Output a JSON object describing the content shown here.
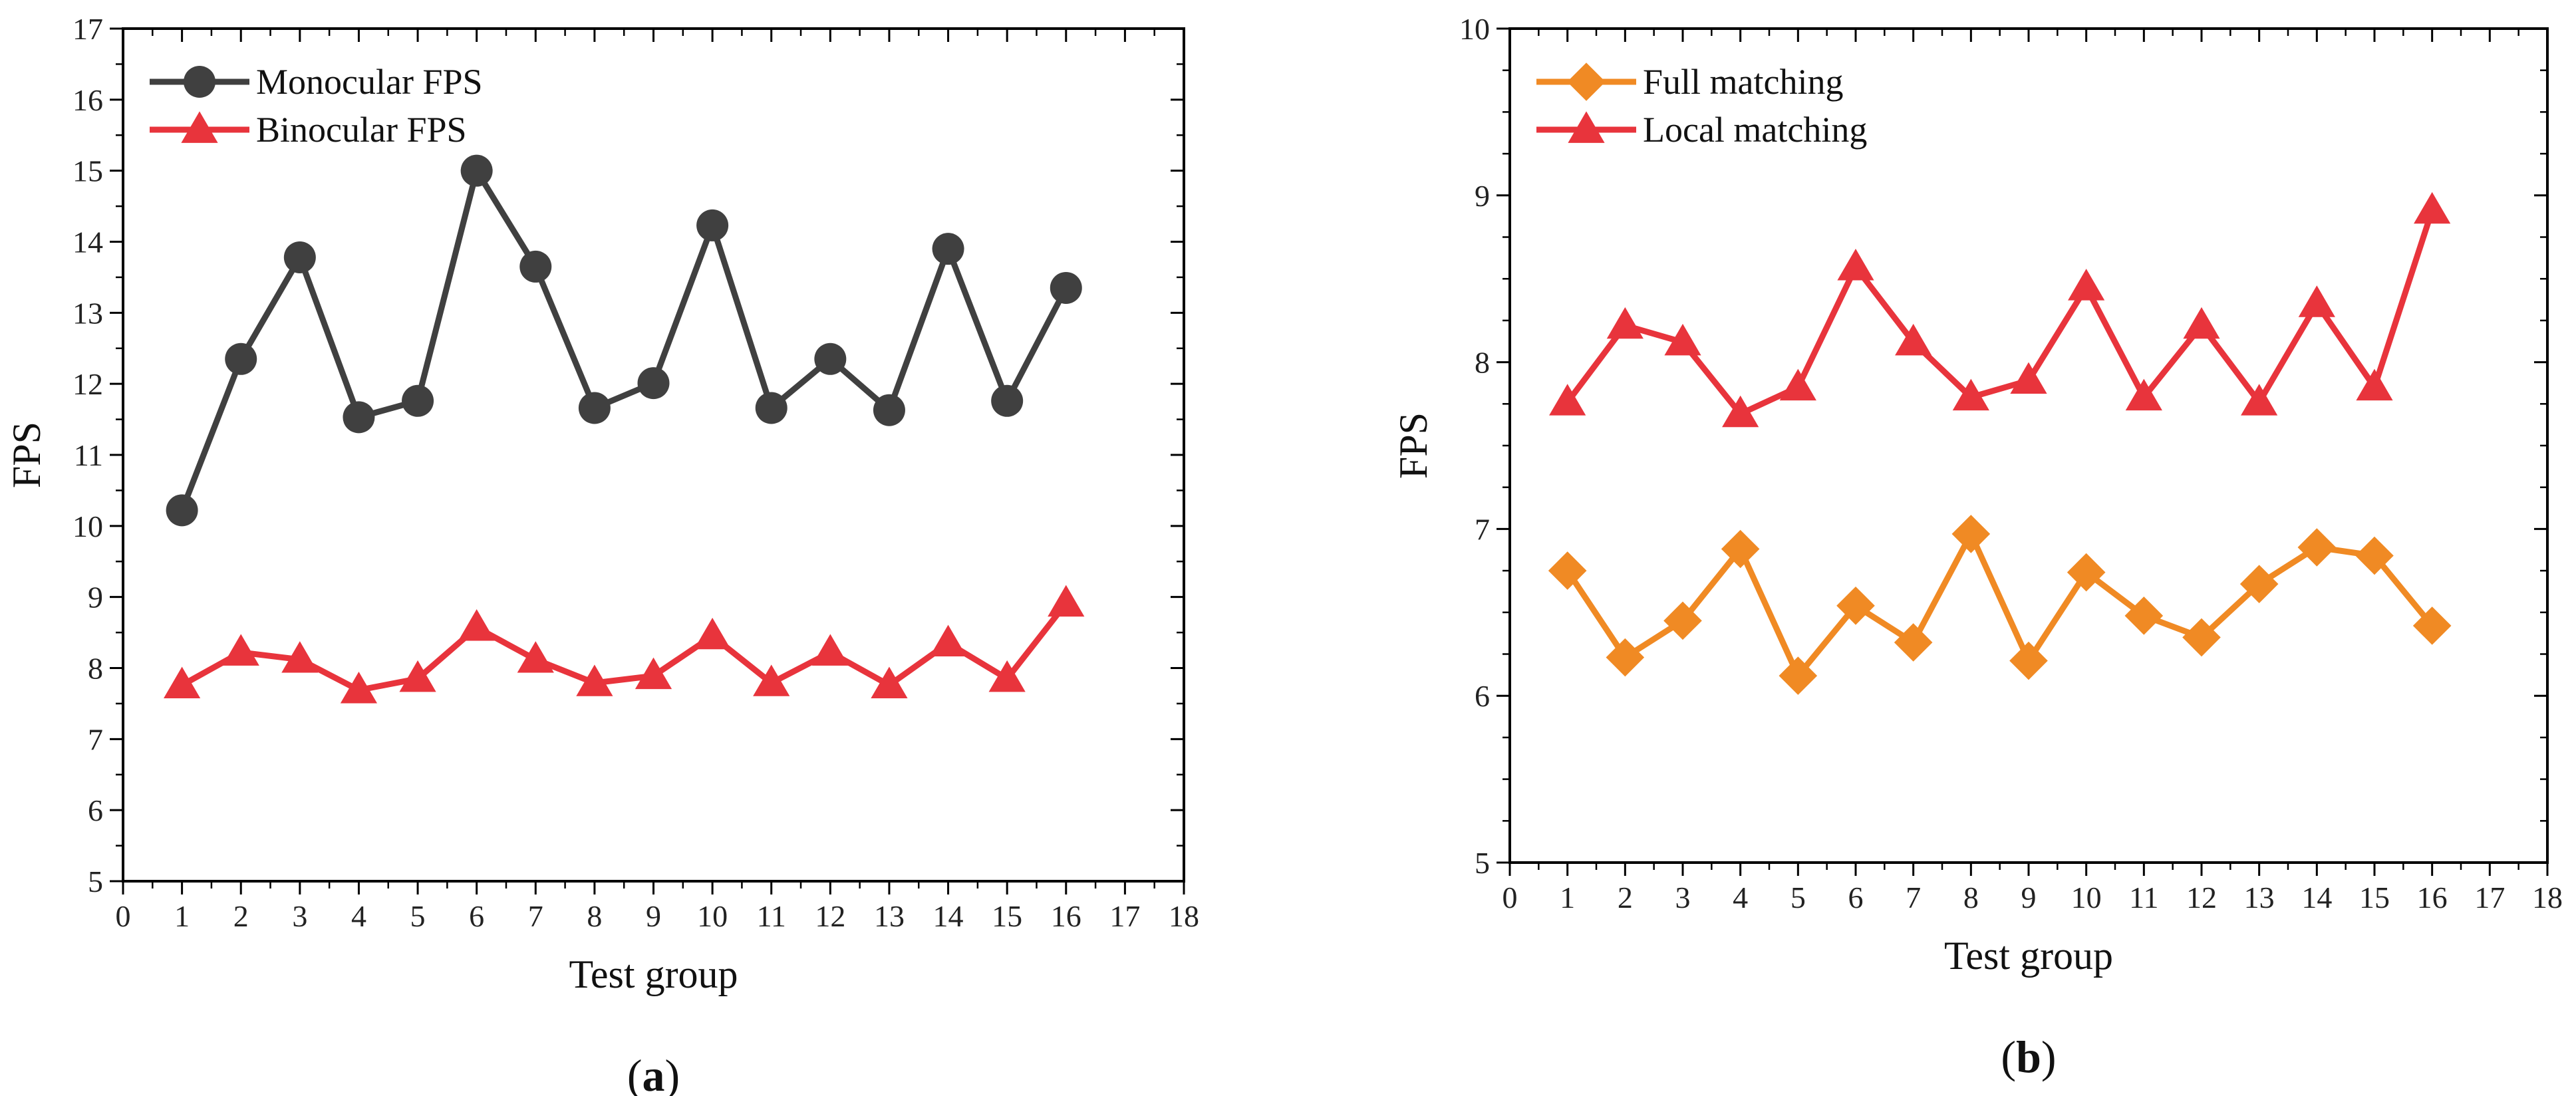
{
  "chart_data": [
    {
      "type": "line",
      "panel_label": "a",
      "xlabel": "Test group",
      "ylabel": "FPS",
      "xlim": [
        0,
        18
      ],
      "ylim": [
        5,
        17
      ],
      "x_ticks": [
        0,
        1,
        2,
        3,
        4,
        5,
        6,
        7,
        8,
        9,
        10,
        11,
        12,
        13,
        14,
        15,
        16,
        17,
        18
      ],
      "y_ticks": [
        5,
        6,
        7,
        8,
        9,
        10,
        11,
        12,
        13,
        14,
        15,
        16,
        17
      ],
      "legend_position": "top-left",
      "x": [
        1,
        2,
        3,
        4,
        5,
        6,
        7,
        8,
        9,
        10,
        11,
        12,
        13,
        14,
        15,
        16
      ],
      "series": [
        {
          "name": "Monocular FPS",
          "marker": "circle",
          "color": "#404040",
          "values": [
            10.22,
            12.35,
            13.78,
            11.53,
            11.76,
            15.0,
            13.65,
            11.66,
            12.01,
            14.23,
            11.66,
            12.35,
            11.63,
            13.9,
            11.76,
            13.35
          ]
        },
        {
          "name": "Binocular FPS",
          "marker": "triangle",
          "color": "#e8343c",
          "values": [
            7.76,
            8.22,
            8.12,
            7.69,
            7.85,
            8.57,
            8.12,
            7.79,
            7.89,
            8.45,
            7.79,
            8.22,
            7.76,
            8.35,
            7.85,
            8.91
          ]
        }
      ]
    },
    {
      "type": "line",
      "panel_label": "b",
      "xlabel": "Test group",
      "ylabel": "FPS",
      "xlim": [
        0,
        18
      ],
      "ylim": [
        5,
        10
      ],
      "x_ticks": [
        0,
        1,
        2,
        3,
        4,
        5,
        6,
        7,
        8,
        9,
        10,
        11,
        12,
        13,
        14,
        15,
        16,
        17,
        18
      ],
      "y_ticks": [
        5,
        6,
        7,
        8,
        9,
        10
      ],
      "legend_position": "top-left",
      "x": [
        1,
        2,
        3,
        4,
        5,
        6,
        7,
        8,
        9,
        10,
        11,
        12,
        13,
        14,
        15,
        16
      ],
      "series": [
        {
          "name": "Full matching",
          "marker": "diamond",
          "color": "#f08a24",
          "values": [
            6.75,
            6.23,
            6.45,
            6.88,
            6.12,
            6.54,
            6.32,
            6.97,
            6.21,
            6.74,
            6.48,
            6.35,
            6.67,
            6.89,
            6.84,
            6.42
          ]
        },
        {
          "name": "Local matching",
          "marker": "triangle",
          "color": "#e8343c",
          "values": [
            7.76,
            8.22,
            8.12,
            7.69,
            7.85,
            8.57,
            8.12,
            7.79,
            7.89,
            8.45,
            7.79,
            8.22,
            7.76,
            8.35,
            7.85,
            8.91
          ]
        }
      ]
    }
  ]
}
